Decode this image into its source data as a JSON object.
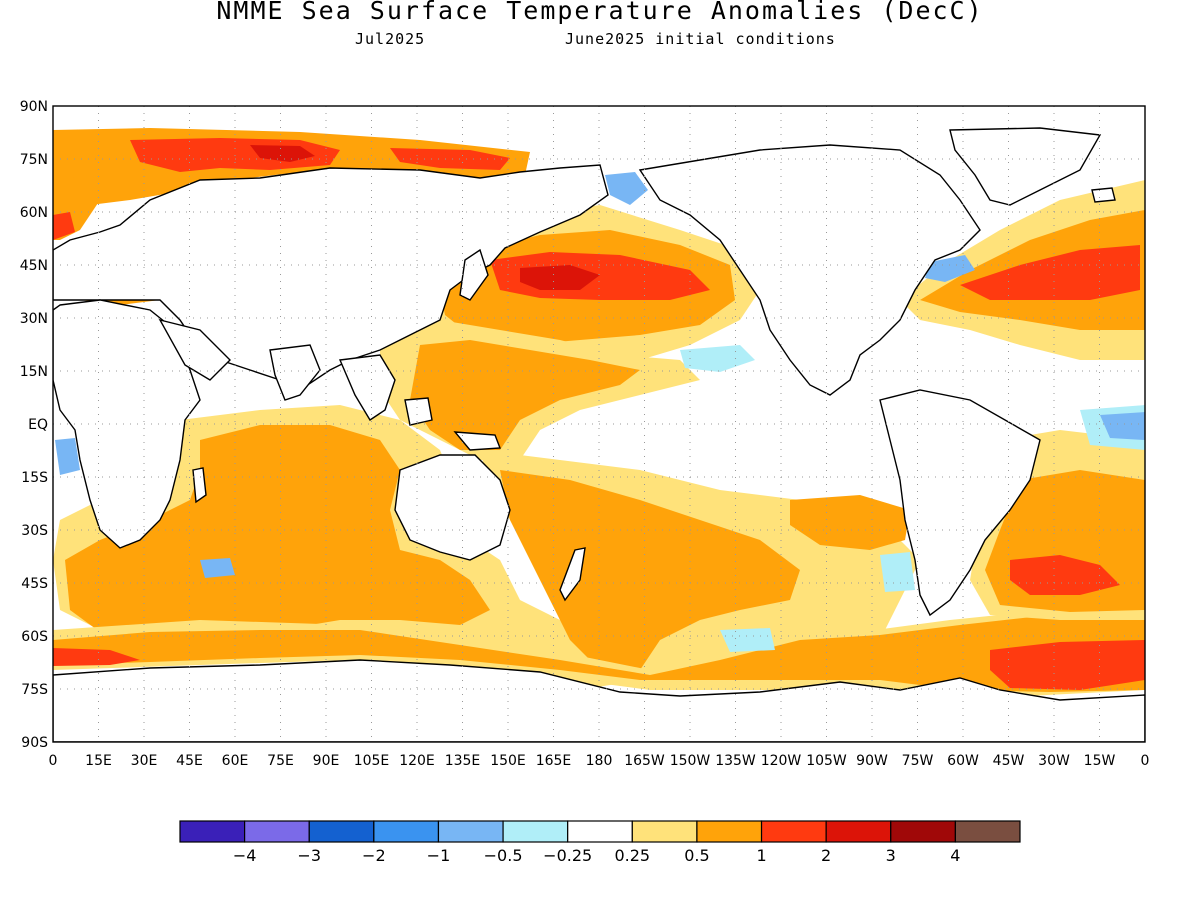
{
  "title": "NMME Sea Surface Temperature Anomalies (DecC)",
  "subtitle_left": "Jul2025",
  "subtitle_right": "June2025 initial conditions",
  "map": {
    "projection": "equirectangular",
    "lon_range": [
      0,
      360
    ],
    "lat_range": [
      -90,
      90
    ],
    "grid": true,
    "lat_labels": [
      "90N",
      "75N",
      "60N",
      "45N",
      "30N",
      "15N",
      "EQ",
      "15S",
      "30S",
      "45S",
      "60S",
      "75S",
      "90S"
    ],
    "lon_labels": [
      "0",
      "15E",
      "30E",
      "45E",
      "60E",
      "75E",
      "90E",
      "105E",
      "120E",
      "135E",
      "150E",
      "165E",
      "180",
      "165W",
      "150W",
      "135W",
      "120W",
      "105W",
      "90W",
      "75W",
      "60W",
      "45W",
      "30W",
      "15W",
      "0"
    ]
  },
  "colorbar": {
    "colors": [
      "#3a20b8",
      "#7b6ae8",
      "#1461d0",
      "#3a93f0",
      "#78b6f4",
      "#b0eef8",
      "#ffffff",
      "#ffe27a",
      "#ffa30a",
      "#ff3a10",
      "#dc1408",
      "#a00808",
      "#7a4e40"
    ],
    "labels": [
      "-4",
      "-3",
      "-2",
      "-1",
      "-0.5",
      "-0.25",
      "0.25",
      "0.5",
      "1",
      "2",
      "3",
      "4"
    ]
  },
  "anomaly_colors": {
    "land": "#ffffff",
    "neutral": "#ffffff",
    "warm_0_25": "#ffe27a",
    "warm_0_5": "#ffa30a",
    "warm_1": "#ff3a10",
    "warm_2": "#dc1408",
    "warm_3": "#a00808",
    "cool_0_25": "#b0eef8",
    "cool_0_5": "#78b6f4",
    "cool_1": "#3a93f0"
  }
}
